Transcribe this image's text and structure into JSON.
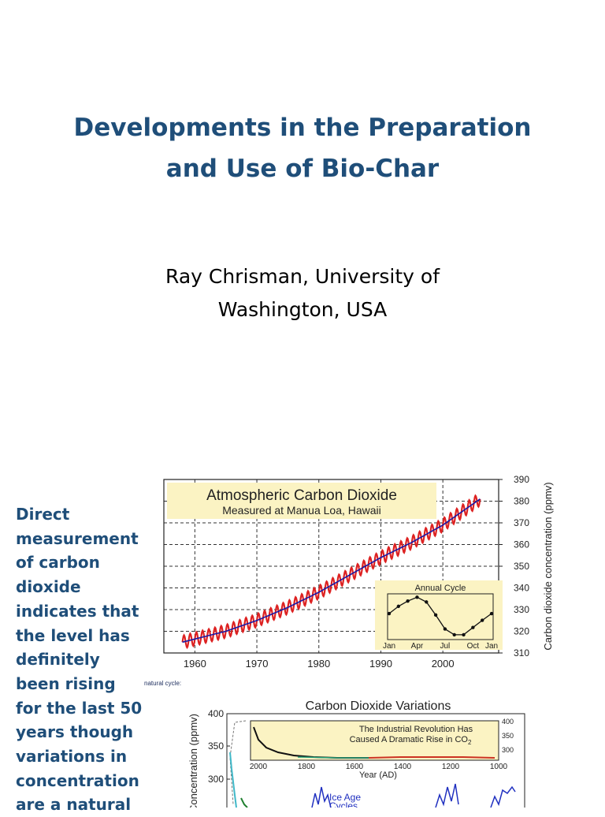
{
  "slide": {
    "title_lines": [
      "Developments in the Preparation",
      "and Use of Bio-Char"
    ],
    "author_lines": [
      "Ray Chrisman, University of",
      "Washington, USA"
    ],
    "body_lines": [
      "Direct",
      "measurement",
      "of carbon",
      "dioxide",
      "indicates that",
      "the level has",
      "definitely",
      "been rising",
      "for the last 50",
      "years though",
      "variations in",
      "concentration",
      "are a natural"
    ],
    "caption": "natural cycle:",
    "colors": {
      "title": "#1f4e79",
      "body": "#1f4e79"
    }
  },
  "chart_data": [
    {
      "type": "line",
      "title": "Atmospheric Carbon Dioxide",
      "subtitle": "Measured at Manua Loa, Hawaii",
      "ylabel": "Carbon dioxide concentration (ppmv)",
      "xlabel": "",
      "xlim": [
        1955,
        2009
      ],
      "ylim": [
        310,
        390
      ],
      "x_ticks": [
        "1960",
        "1970",
        "1980",
        "1990",
        "2000"
      ],
      "y_ticks": [
        "310",
        "320",
        "330",
        "340",
        "350",
        "360",
        "370",
        "380",
        "390"
      ],
      "grid": true,
      "series": [
        {
          "color": "#1a1aa6",
          "x": [
            1958,
            1965,
            1970,
            1975,
            1980,
            1985,
            1990,
            1995,
            2000,
            2006
          ],
          "y": [
            315,
            320,
            325,
            331,
            338,
            346,
            354,
            361,
            369,
            381
          ]
        },
        {
          "color": "#dd2222",
          "seasonal_amplitude": 3
        }
      ],
      "inset": {
        "title": "Annual Cycle",
        "x_ticks": [
          "Jan",
          "Apr",
          "Jul",
          "Oct",
          "Jan"
        ],
        "values": [
          3.4,
          4.9,
          6.0,
          6.8,
          5.8,
          3.1,
          0.2,
          -1.0,
          -1.0,
          0.5,
          2.0,
          3.4
        ],
        "background": "#fbf3c3"
      },
      "header_background": "#fbf3c3"
    },
    {
      "type": "line",
      "title": "Carbon Dioxide Variations",
      "ylabel": "Concentration (ppmv)",
      "y_ticks": [
        "300",
        "350",
        "400"
      ],
      "annotations": [
        "Ice Age",
        "Cycles"
      ],
      "inset": {
        "title_lines": [
          "The Industrial Revolution Has",
          "Caused A Dramatic Rise in CO"
        ],
        "title_subscript": "2",
        "xlabel": "Year (AD)",
        "x_ticks": [
          "2000",
          "1800",
          "1600",
          "1400",
          "1200",
          "1000"
        ],
        "y_ticks": [
          "400",
          "350",
          "300"
        ],
        "background": "#fbf3c3"
      }
    }
  ]
}
